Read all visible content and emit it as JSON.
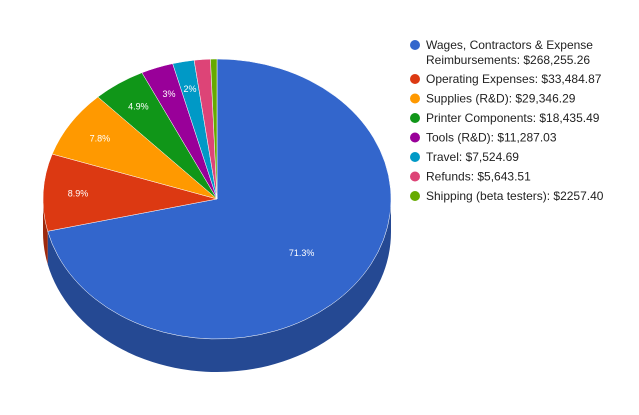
{
  "chart_data": {
    "type": "pie",
    "style": "3d",
    "legend_position": "right",
    "series": [
      {
        "name": "Wages, Contractors & Expense Reimbursements: $268,255.26",
        "legend_lines": [
          "Wages, Contractors & Expense",
          "Reimbursements: $268,255.26"
        ],
        "value": 268255.26,
        "pct_label": "71.3%",
        "color": "#3366cc"
      },
      {
        "name": "Operating Expenses: $33,484.87",
        "legend_lines": [
          "Operating Expenses: $33,484.87"
        ],
        "value": 33484.87,
        "pct_label": "8.9%",
        "color": "#dc3912"
      },
      {
        "name": "Supplies (R&D): $29,346.29",
        "legend_lines": [
          "Supplies (R&D): $29,346.29"
        ],
        "value": 29346.29,
        "pct_label": "7.8%",
        "color": "#ff9900"
      },
      {
        "name": "Printer Components: $18,435.49",
        "legend_lines": [
          "Printer Components: $18,435.49"
        ],
        "value": 18435.49,
        "pct_label": "4.9%",
        "color": "#109618"
      },
      {
        "name": "Tools (R&D): $11,287.03",
        "legend_lines": [
          "Tools (R&D): $11,287.03"
        ],
        "value": 11287.03,
        "pct_label": "3%",
        "color": "#990099"
      },
      {
        "name": "Travel: $7,524.69",
        "legend_lines": [
          "Travel: $7,524.69"
        ],
        "value": 7524.69,
        "pct_label": "2%",
        "color": "#0099c6"
      },
      {
        "name": "Refunds: $5,643.51",
        "legend_lines": [
          "Refunds: $5,643.51"
        ],
        "value": 5643.51,
        "pct_label": "",
        "color": "#dd4477"
      },
      {
        "name": "Shipping (beta testers): $2257.40",
        "legend_lines": [
          "Shipping (beta testers): $2257.40"
        ],
        "value": 2257.4,
        "pct_label": "",
        "color": "#66aa00"
      }
    ]
  }
}
